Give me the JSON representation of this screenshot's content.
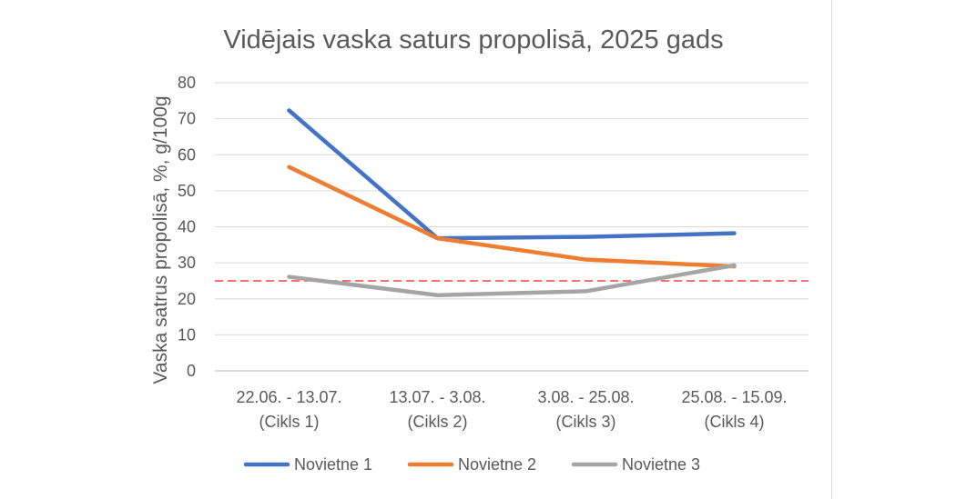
{
  "chart_data": {
    "type": "line",
    "title": "Vidējais vaska saturs propolisā, 2025 gads",
    "ylabel": "Vaska satrus propolisā, %, g/100g",
    "xlabel": "",
    "ylim": [
      0,
      80
    ],
    "yticks": [
      0,
      10,
      20,
      30,
      40,
      50,
      60,
      70,
      80
    ],
    "categories": [
      [
        "22.06. - 13.07.",
        "(Cikls 1)"
      ],
      [
        "13.07. - 3.08.",
        "(Cikls 2)"
      ],
      [
        "3.08. - 25.08.",
        "(Cikls 3)"
      ],
      [
        "25.08. - 15.09.",
        "(Cikls 4)"
      ]
    ],
    "series": [
      {
        "name": "Novietne 1",
        "color": "#4472C4",
        "values": [
          72.3,
          36.8,
          37.2,
          38.2
        ]
      },
      {
        "name": "Novietne 2",
        "color": "#ED7D31",
        "values": [
          56.6,
          36.8,
          30.9,
          29.0
        ]
      },
      {
        "name": "Novietne 3",
        "color": "#A5A5A5",
        "values": [
          26.1,
          21.0,
          22.1,
          29.3
        ]
      }
    ],
    "reference_line": {
      "value": 25,
      "color": "#FF0000",
      "style": "dashed"
    },
    "grid": true,
    "legend_position": "bottom"
  }
}
